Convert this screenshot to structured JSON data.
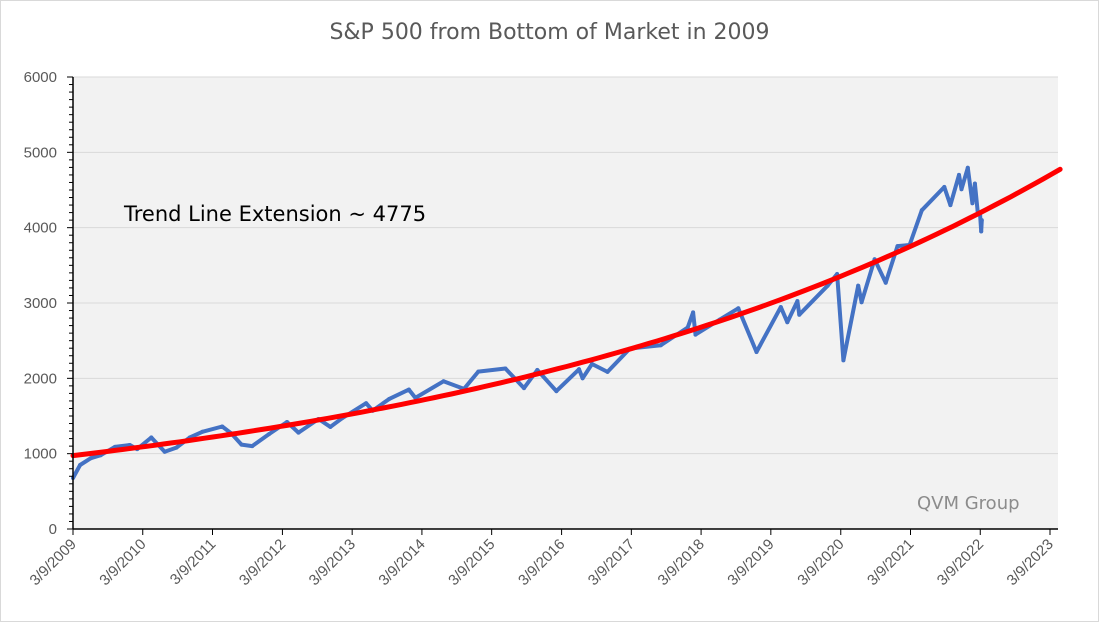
{
  "chart_data": {
    "type": "line",
    "title": "S&P 500 from Bottom of Market in 2009",
    "xlabel": "",
    "ylabel": "",
    "ylim": [
      0,
      6000
    ],
    "yticks": [
      "0",
      "1000",
      "2000",
      "3000",
      "4000",
      "5000",
      "6000"
    ],
    "xticks": [
      "3/9/2009",
      "3/9/2010",
      "3/9/2011",
      "3/9/2012",
      "3/9/2013",
      "3/9/2014",
      "3/9/2015",
      "3/9/2016",
      "3/9/2017",
      "3/9/2018",
      "3/9/2019",
      "3/9/2020",
      "3/9/2021",
      "3/9/2022",
      "3/9/2023"
    ],
    "grid": true,
    "legend": "none",
    "annotation": "Trend Line Extension ~ 4775",
    "watermark": "QVM Group",
    "series": [
      {
        "name": "",
        "color": "#4472c4",
        "kind": "price",
        "points": [
          [
            "2009-03-09",
            677
          ],
          [
            "2009-04-15",
            850
          ],
          [
            "2009-06-10",
            940
          ],
          [
            "2009-08-01",
            980
          ],
          [
            "2009-10-15",
            1090
          ],
          [
            "2009-12-31",
            1115
          ],
          [
            "2010-02-08",
            1060
          ],
          [
            "2010-04-23",
            1215
          ],
          [
            "2010-07-02",
            1025
          ],
          [
            "2010-09-01",
            1080
          ],
          [
            "2010-11-10",
            1215
          ],
          [
            "2011-01-15",
            1290
          ],
          [
            "2011-04-29",
            1360
          ],
          [
            "2011-06-15",
            1270
          ],
          [
            "2011-08-08",
            1120
          ],
          [
            "2011-10-03",
            1100
          ],
          [
            "2011-12-30",
            1260
          ],
          [
            "2012-04-02",
            1420
          ],
          [
            "2012-06-01",
            1280
          ],
          [
            "2012-09-14",
            1460
          ],
          [
            "2012-11-15",
            1355
          ],
          [
            "2013-01-15",
            1470
          ],
          [
            "2013-05-21",
            1670
          ],
          [
            "2013-06-24",
            1570
          ],
          [
            "2013-09-18",
            1725
          ],
          [
            "2013-12-31",
            1850
          ],
          [
            "2014-02-03",
            1740
          ],
          [
            "2014-06-30",
            1960
          ],
          [
            "2014-10-15",
            1860
          ],
          [
            "2014-12-29",
            2090
          ],
          [
            "2015-05-20",
            2130
          ],
          [
            "2015-08-25",
            1870
          ],
          [
            "2015-11-03",
            2110
          ],
          [
            "2016-02-11",
            1830
          ],
          [
            "2016-06-08",
            2120
          ],
          [
            "2016-06-27",
            2000
          ],
          [
            "2016-08-15",
            2190
          ],
          [
            "2016-11-04",
            2085
          ],
          [
            "2017-03-01",
            2395
          ],
          [
            "2017-08-10",
            2440
          ],
          [
            "2017-12-29",
            2675
          ],
          [
            "2018-01-26",
            2875
          ],
          [
            "2018-02-08",
            2580
          ],
          [
            "2018-06-15",
            2780
          ],
          [
            "2018-09-20",
            2930
          ],
          [
            "2018-12-24",
            2350
          ],
          [
            "2019-04-30",
            2945
          ],
          [
            "2019-06-03",
            2745
          ],
          [
            "2019-07-26",
            3025
          ],
          [
            "2019-08-05",
            2845
          ],
          [
            "2019-12-31",
            3230
          ],
          [
            "2020-02-19",
            3385
          ],
          [
            "2020-03-23",
            2240
          ],
          [
            "2020-06-08",
            3230
          ],
          [
            "2020-06-26",
            3010
          ],
          [
            "2020-09-02",
            3580
          ],
          [
            "2020-10-30",
            3270
          ],
          [
            "2020-12-31",
            3755
          ],
          [
            "2021-03-04",
            3770
          ],
          [
            "2021-05-07",
            4230
          ],
          [
            "2021-09-02",
            4540
          ],
          [
            "2021-10-04",
            4300
          ],
          [
            "2021-11-18",
            4700
          ],
          [
            "2021-12-01",
            4510
          ],
          [
            "2022-01-03",
            4795
          ],
          [
            "2022-01-27",
            4325
          ],
          [
            "2022-02-09",
            4585
          ],
          [
            "2022-02-23",
            4225
          ],
          [
            "2022-03-08",
            4170
          ],
          [
            "2022-03-14",
            3950
          ],
          [
            "2022-03-17",
            4100
          ]
        ]
      },
      {
        "name": "",
        "color": "#ff0000",
        "kind": "exponential trend",
        "start": [
          "2009-03-09",
          975
        ],
        "end": [
          "2023-05-01",
          4775
        ]
      }
    ]
  }
}
